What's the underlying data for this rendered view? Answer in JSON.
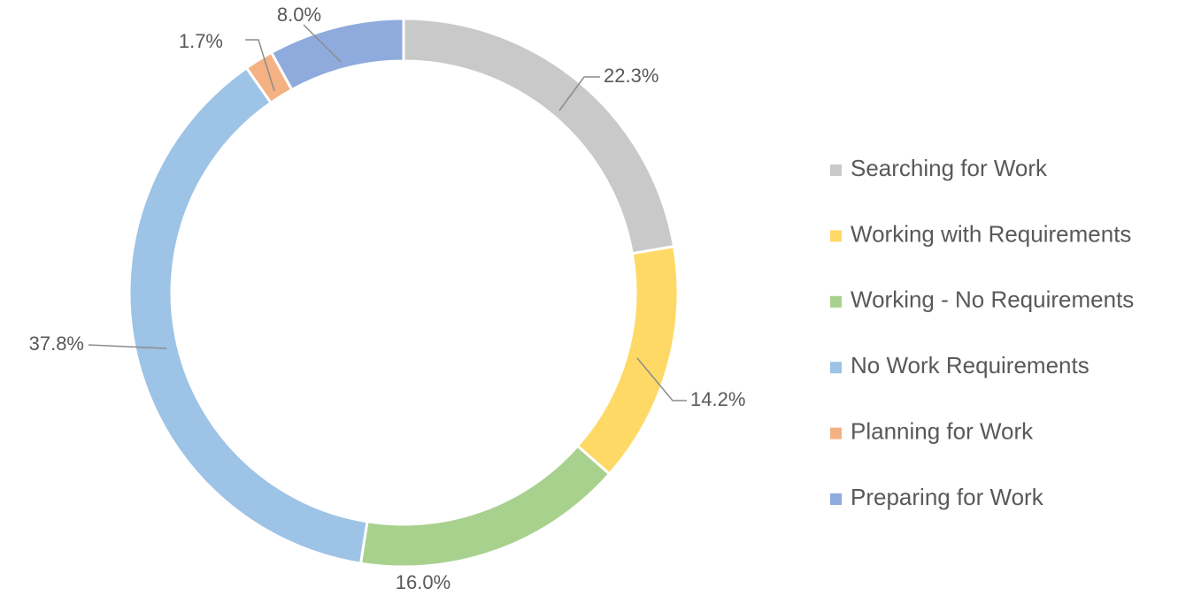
{
  "chart_data": {
    "type": "donut",
    "categories": [
      "Searching for Work",
      "Working with Requirements",
      "Working - No Requirements",
      "No Work Requirements",
      "Planning for Work",
      "Preparing for Work"
    ],
    "values": [
      22.3,
      14.2,
      16.0,
      37.8,
      1.7,
      8.0
    ],
    "value_labels": [
      "22.3%",
      "14.2%",
      "16.0%",
      "37.8%",
      "1.7%",
      "8.0%"
    ],
    "colors": [
      "#c9c9c9",
      "#ffd966",
      "#a9d18e",
      "#9dc3e6",
      "#f4b183",
      "#8faadc"
    ],
    "legend": "right"
  }
}
